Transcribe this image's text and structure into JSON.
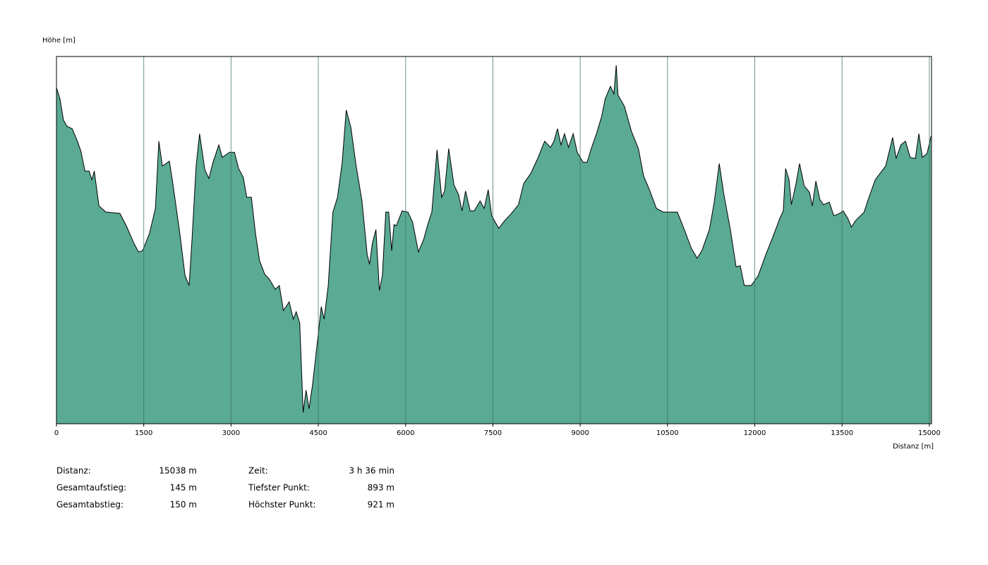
{
  "chart_data": {
    "type": "area",
    "ylabel": "Höhe [m]",
    "xlabel": "Distanz [m]",
    "xlim": [
      0,
      15038
    ],
    "ylim": [
      892.1,
      921.6
    ],
    "xticks": [
      0,
      1500,
      3000,
      4500,
      6000,
      7500,
      9000,
      10500,
      12000,
      13500,
      15000
    ],
    "grid": true,
    "color": "#5aaa94",
    "line_color": "#000000",
    "x": [
      0,
      60,
      120,
      180,
      270,
      360,
      420,
      490,
      560,
      610,
      650,
      730,
      850,
      1090,
      1210,
      1330,
      1410,
      1480,
      1600,
      1700,
      1760,
      1820,
      1940,
      2000,
      2120,
      2210,
      2280,
      2330,
      2400,
      2460,
      2550,
      2620,
      2690,
      2790,
      2850,
      2970,
      3060,
      3130,
      3210,
      3270,
      3350,
      3420,
      3490,
      3580,
      3660,
      3760,
      3830,
      3900,
      4000,
      4070,
      4120,
      4180,
      4240,
      4290,
      4340,
      4400,
      4490,
      4550,
      4600,
      4670,
      4750,
      4830,
      4910,
      4980,
      5060,
      5150,
      5250,
      5340,
      5380,
      5430,
      5490,
      5550,
      5600,
      5660,
      5710,
      5760,
      5800,
      5840,
      5940,
      6040,
      6120,
      6220,
      6310,
      6380,
      6450,
      6540,
      6620,
      6670,
      6740,
      6830,
      6910,
      6970,
      7030,
      7110,
      7180,
      7280,
      7350,
      7420,
      7480,
      7600,
      7700,
      7820,
      7940,
      8030,
      8150,
      8270,
      8390,
      8490,
      8550,
      8610,
      8670,
      8730,
      8800,
      8880,
      8950,
      9050,
      9120,
      9190,
      9280,
      9370,
      9430,
      9520,
      9580,
      9620,
      9650,
      9760,
      9880,
      10000,
      10090,
      10190,
      10310,
      10430,
      10670,
      10790,
      10910,
      11010,
      11090,
      11220,
      11300,
      11390,
      11470,
      11580,
      11680,
      11750,
      11820,
      11940,
      12060,
      12190,
      12310,
      12430,
      12490,
      12530,
      12590,
      12630,
      12710,
      12770,
      12850,
      12940,
      12990,
      13050,
      13120,
      13180,
      13280,
      13360,
      13460,
      13520,
      13600,
      13660,
      13730,
      13880,
      13940,
      14070,
      14250,
      14370,
      14430,
      14510,
      14590,
      14670,
      14760,
      14820,
      14880,
      14960,
      15030
    ],
    "values": [
      919.1,
      918.2,
      916.5,
      916.0,
      915.8,
      914.8,
      914.0,
      912.4,
      912.4,
      911.7,
      912.4,
      909.6,
      909.1,
      909.0,
      907.9,
      906.6,
      905.9,
      906.0,
      907.4,
      909.4,
      914.8,
      912.8,
      913.2,
      911.4,
      907.4,
      904.0,
      903.2,
      906.9,
      912.8,
      915.4,
      912.5,
      911.8,
      913.1,
      914.5,
      913.5,
      913.9,
      913.9,
      912.6,
      911.9,
      910.3,
      910.3,
      907.4,
      905.2,
      904.1,
      903.7,
      902.9,
      903.2,
      901.2,
      901.9,
      900.5,
      901.1,
      900.2,
      893.0,
      894.8,
      893.3,
      895.2,
      898.9,
      901.5,
      900.5,
      903.2,
      909.1,
      910.3,
      913.1,
      917.3,
      915.9,
      912.8,
      910.0,
      905.7,
      904.9,
      906.6,
      907.7,
      902.8,
      904.0,
      909.1,
      909.1,
      906.0,
      908.1,
      908.0,
      909.2,
      909.1,
      908.3,
      905.9,
      906.9,
      908.1,
      909.1,
      914.1,
      910.3,
      910.8,
      914.2,
      911.3,
      910.5,
      909.2,
      910.8,
      909.2,
      909.2,
      910.0,
      909.4,
      910.9,
      908.8,
      907.8,
      908.4,
      909.0,
      909.7,
      911.4,
      912.2,
      913.4,
      914.8,
      914.3,
      914.8,
      915.8,
      914.5,
      915.4,
      914.3,
      915.4,
      913.9,
      913.1,
      913.1,
      914.2,
      915.4,
      916.8,
      918.2,
      919.2,
      918.6,
      920.9,
      918.5,
      917.6,
      915.6,
      914.2,
      912.0,
      910.9,
      909.4,
      909.1,
      909.1,
      907.7,
      906.2,
      905.4,
      906.0,
      907.7,
      909.8,
      913.0,
      910.5,
      907.7,
      904.7,
      904.8,
      903.2,
      903.2,
      904.0,
      905.7,
      907.1,
      908.6,
      909.2,
      912.6,
      911.7,
      909.7,
      911.4,
      913.0,
      911.2,
      910.7,
      909.6,
      911.6,
      910.1,
      909.7,
      909.9,
      908.8,
      909.0,
      909.2,
      908.6,
      907.9,
      908.4,
      909.1,
      910.0,
      911.7,
      912.8,
      915.1,
      913.4,
      914.5,
      914.8,
      913.5,
      913.4,
      915.4,
      913.5,
      913.8,
      915.2
    ],
    "stats": [
      [
        {
          "label": "Distanz:",
          "value": "15038 m"
        },
        {
          "label": "Zeit:",
          "value": "3 h 36 min"
        }
      ],
      [
        {
          "label": "Gesamtaufstieg:",
          "value": "145 m"
        },
        {
          "label": "Tiefster Punkt:",
          "value": "893 m"
        }
      ],
      [
        {
          "label": "Gesamtabstieg:",
          "value": "150 m"
        },
        {
          "label": "Höchster Punkt:",
          "value": "921 m"
        }
      ]
    ]
  }
}
